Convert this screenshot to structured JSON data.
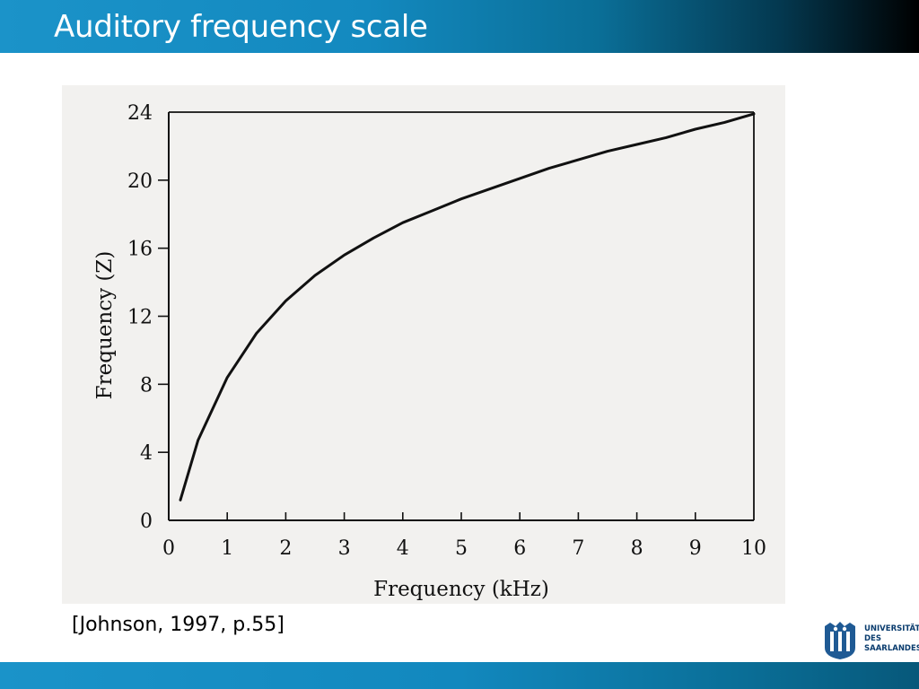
{
  "slide": {
    "title": "Auditory frequency scale",
    "citation": "[Johnson, 1997, p.55]"
  },
  "logo": {
    "lines": [
      "UNIVERSITÄT",
      "DES",
      "SAARLANDES"
    ]
  },
  "colors": {
    "header_start": "#1b93c9",
    "header_end": "#000000",
    "footer": "#1288be",
    "figure_background": "#f2f1ef",
    "ink": "#111111"
  },
  "chart_data": {
    "type": "line",
    "title": "",
    "xlabel": "Frequency (kHz)",
    "ylabel": "Frequency (Z)",
    "xlim": [
      0,
      10
    ],
    "ylim": [
      0,
      24
    ],
    "xticks": [
      0,
      1,
      2,
      3,
      4,
      5,
      6,
      7,
      8,
      9,
      10
    ],
    "yticks": [
      0,
      4,
      8,
      12,
      16,
      20,
      24
    ],
    "grid": false,
    "series": [
      {
        "x": [
          0.2,
          0.5,
          1,
          1.5,
          2,
          2.5,
          3,
          3.5,
          4,
          4.5,
          5,
          5.5,
          6,
          6.5,
          7,
          7.5,
          8,
          8.5,
          9,
          9.5,
          10
        ],
        "values": [
          1.2,
          4.7,
          8.4,
          11.0,
          12.9,
          14.4,
          15.6,
          16.6,
          17.5,
          18.2,
          18.9,
          19.5,
          20.1,
          20.7,
          21.2,
          21.7,
          22.1,
          22.5,
          23.0,
          23.4,
          23.9
        ]
      }
    ]
  }
}
